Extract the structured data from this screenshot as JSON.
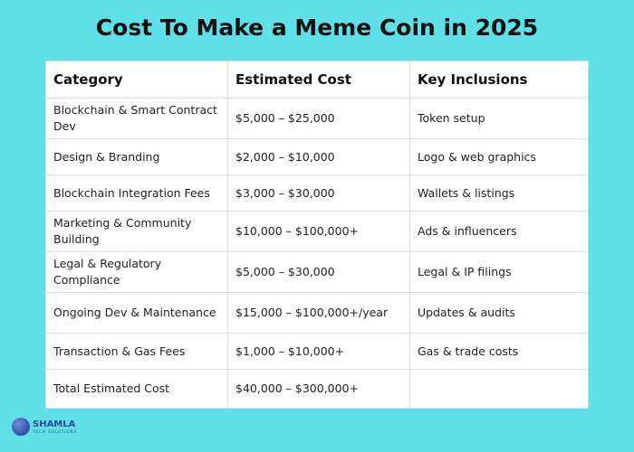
{
  "title": "Cost To Make a Meme Coin in 2025",
  "headers": [
    "Category",
    "Estimated Cost",
    "Key Inclusions"
  ],
  "rows": [
    [
      "Blockchain & Smart Contract Dev",
      "$5,000 – $25,000",
      "Token setup"
    ],
    [
      "Design & Branding",
      "$2,000 – $10,000",
      "Logo & web graphics"
    ],
    [
      "Blockchain Integration Fees",
      "$3,000 – $30,000",
      "Wallets & listings"
    ],
    [
      "Marketing & Community Building",
      "$10,000 – $100,000+",
      "Ads & influencers"
    ],
    [
      "Legal & Regulatory Compliance",
      "$5,000 – $30,000",
      "Legal & IP filings"
    ],
    [
      "Ongoing Dev & Maintenance",
      "$15,000 – $100,000+/year",
      "Updates & audits"
    ],
    [
      "Transaction & Gas Fees",
      "$1,000 – $10,000+",
      "Gas & trade costs"
    ],
    [
      "Total Estimated Cost",
      "$40,000 – $300,000+",
      ""
    ]
  ],
  "logo": {
    "name": "SHAMLA",
    "sub": "TECH SOLUTIONS"
  }
}
